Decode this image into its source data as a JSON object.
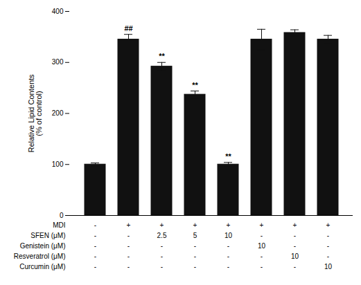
{
  "chart_data": {
    "type": "bar",
    "categories": [
      null,
      null,
      null,
      null,
      null,
      null,
      null,
      null
    ],
    "values": [
      100,
      345,
      292,
      237,
      100,
      345,
      358,
      345
    ],
    "errors": [
      3,
      10,
      8,
      7,
      4,
      20,
      6,
      8
    ],
    "color": "#111111",
    "ylabel": "Relative Lipid Contents\n(% of control)",
    "ylim": [
      0,
      400
    ],
    "yticks": [
      0,
      100,
      200,
      300,
      400
    ],
    "tick_labels": "y",
    "annotations": [
      {
        "text": "##",
        "index": 1
      },
      {
        "text": "**",
        "index": 2
      },
      {
        "text": "**",
        "index": 3
      },
      {
        "text": "**",
        "index": 4
      }
    ],
    "table": [
      [
        "MDI",
        "-",
        "+",
        "+",
        "+",
        "+",
        "+",
        "+",
        "+"
      ],
      [
        "SFEN (μM)",
        "-",
        "-",
        "2.5",
        "5",
        "10",
        "-",
        "-",
        "-"
      ],
      [
        "Genistein (μM)",
        "-",
        "-",
        "-",
        "-",
        "-",
        "10",
        "-",
        "-"
      ],
      [
        "Resveratrol (μM)",
        "-",
        "-",
        "-",
        "-",
        "-",
        "-",
        "10",
        "-"
      ],
      [
        "Curcumin (μM)",
        "-",
        "-",
        "-",
        "-",
        "-",
        "-",
        "-",
        "10"
      ]
    ]
  }
}
